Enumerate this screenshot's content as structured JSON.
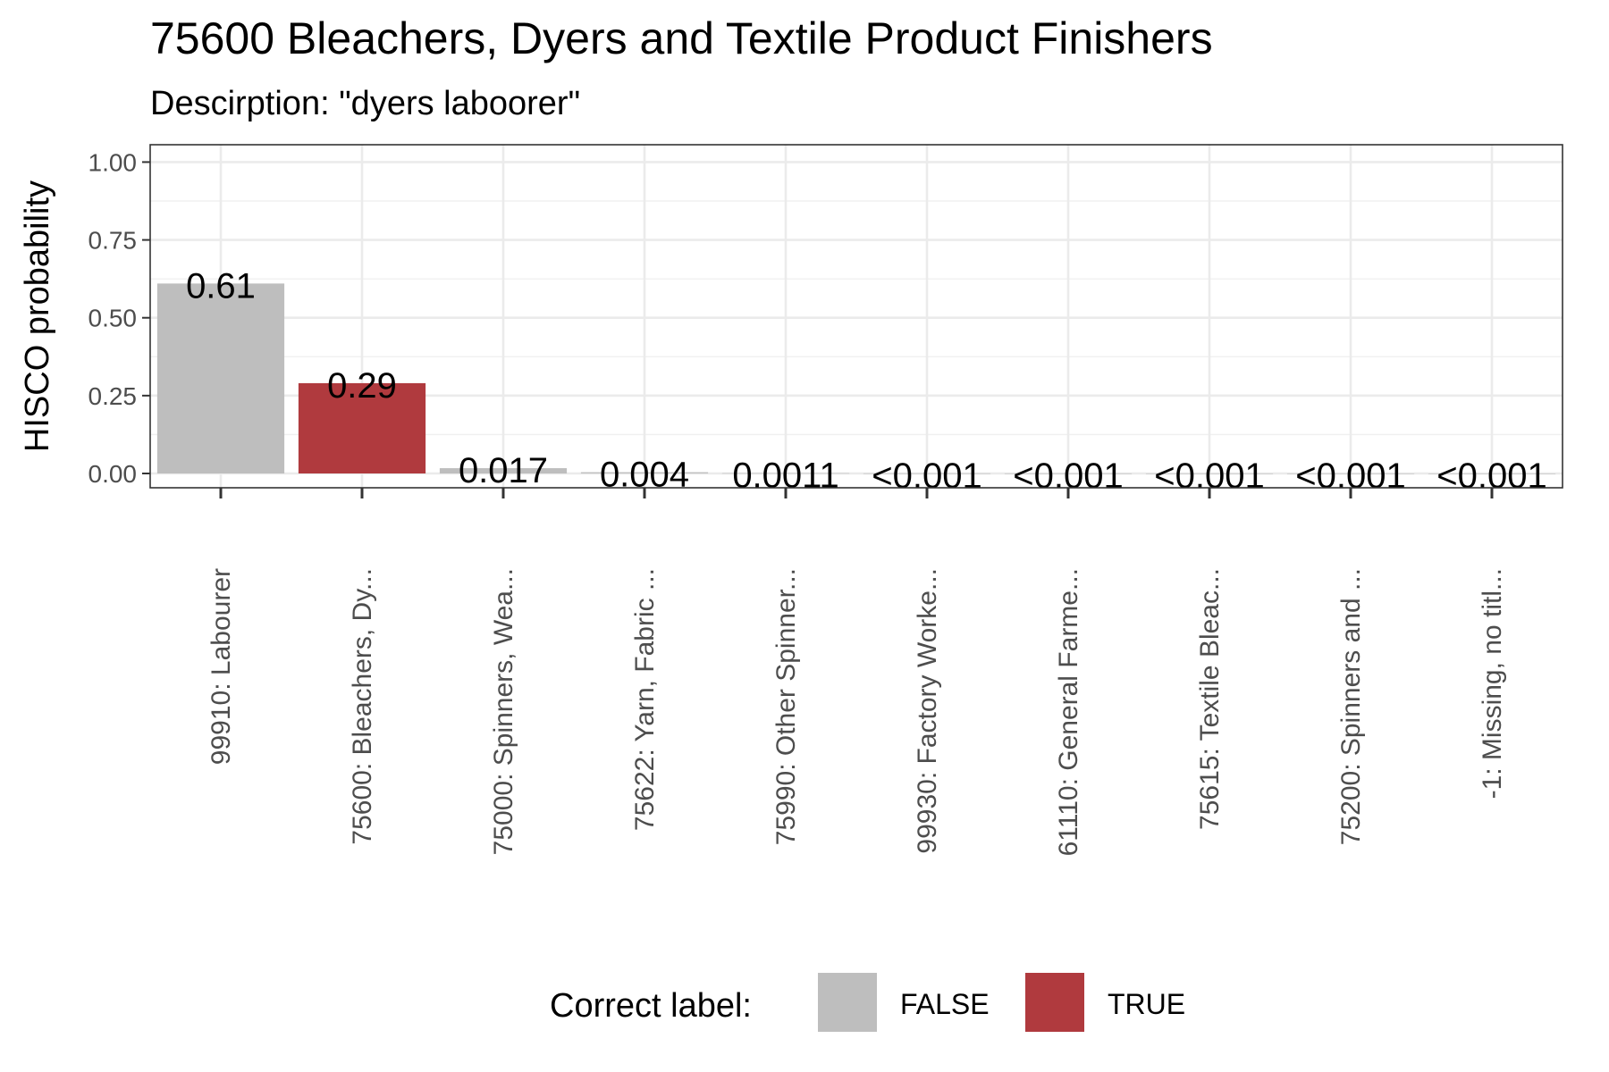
{
  "chart_data": {
    "type": "bar",
    "title": "75600 Bleachers, Dyers and Textile Product Finishers",
    "subtitle": "Descirption: \"dyers laboorer\"",
    "xlabel": "",
    "ylabel": "HISCO probability",
    "ylim": [
      0,
      1.05
    ],
    "yticks": [
      "0.00",
      "0.25",
      "0.50",
      "0.75",
      "1.00"
    ],
    "grid": true,
    "legend": {
      "title": "Correct label:",
      "placement": "bottom",
      "entries": [
        {
          "label": "FALSE",
          "color": "#bebebe"
        },
        {
          "label": "TRUE",
          "color": "#b03a3e"
        }
      ]
    },
    "categories": [
      "99910: Labourer",
      "75600: Bleachers, Dy...",
      "75000: Spinners, Wea...",
      "75622: Yarn, Fabric ...",
      "75990: Other Spinner...",
      "99930: Factory Worke...",
      "61110: General Farme...",
      "75615: Textile Bleac...",
      "75200: Spinners and ...",
      "-1: Missing, no titl..."
    ],
    "values": [
      0.61,
      0.29,
      0.017,
      0.004,
      0.0011,
      0.0004,
      0.0003,
      0.0002,
      0.0002,
      0.0001
    ],
    "value_labels": [
      "0.61",
      "0.29",
      "0.017",
      "0.004",
      "0.0011",
      "<0.001",
      "<0.001",
      "<0.001",
      "<0.001",
      "<0.001"
    ],
    "correct": [
      false,
      true,
      false,
      false,
      false,
      false,
      false,
      false,
      false,
      false
    ]
  }
}
